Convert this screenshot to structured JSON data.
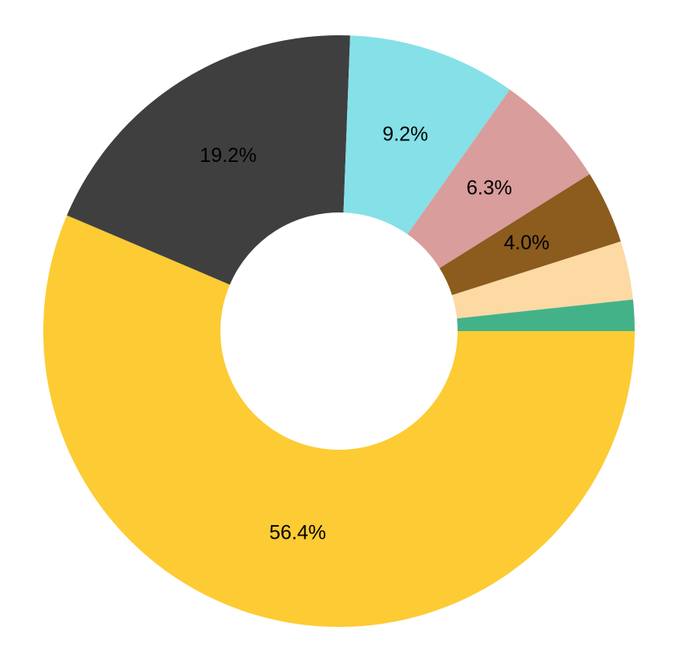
{
  "chart_data": {
    "type": "donut",
    "values": [
      56.4,
      19.2,
      9.2,
      6.3,
      4.0,
      3.2,
      1.7
    ],
    "value_labels": [
      "56.4%",
      "19.2%",
      "9.2%",
      "6.3%",
      "4.0%",
      null,
      null
    ],
    "colors": [
      "#fdcb33",
      "#3f3f3f",
      "#85e0e7",
      "#d99d9b",
      "#8b5c1e",
      "#fdd9a4",
      "#44b288"
    ]
  }
}
